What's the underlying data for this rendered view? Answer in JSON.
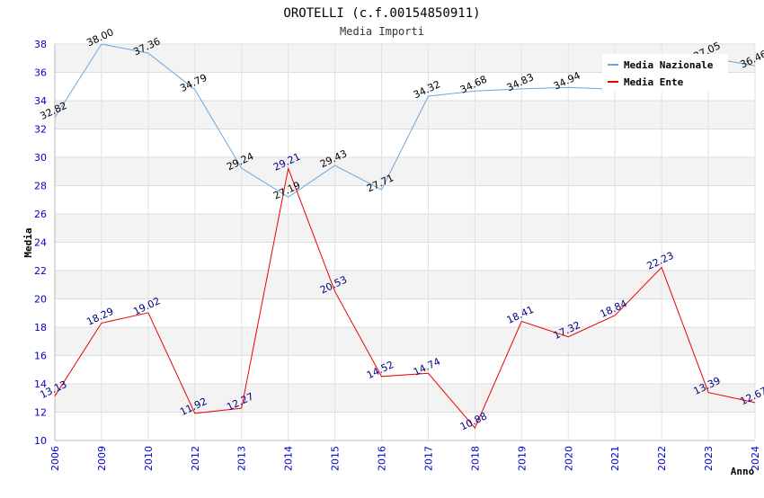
{
  "chart_data": {
    "type": "line",
    "title": "OROTELLI (c.f.00154850911)",
    "subtitle": "Media Importi",
    "xlabel": "Anno",
    "ylabel": "Media",
    "ylim": [
      10,
      38
    ],
    "yticks": [
      10,
      12,
      14,
      16,
      18,
      20,
      22,
      24,
      26,
      28,
      30,
      32,
      34,
      36,
      38
    ],
    "categories": [
      "2006",
      "2009",
      "2010",
      "2012",
      "2013",
      "2014",
      "2015",
      "2016",
      "2017",
      "2018",
      "2019",
      "2020",
      "2021",
      "2022",
      "2023",
      "2024"
    ],
    "legend_position": "top-right",
    "grid": true,
    "series": [
      {
        "name": "Media Nazionale",
        "color": "#6aa6e0",
        "values": [
          32.82,
          38.0,
          37.36,
          34.79,
          29.24,
          27.19,
          29.43,
          27.71,
          34.32,
          34.68,
          34.83,
          34.94,
          34.8,
          null,
          37.05,
          36.46
        ],
        "labels": [
          "32.82",
          "38.00",
          "37.36",
          "34.79",
          "29.24",
          "27.19",
          "29.43",
          "27.71",
          "34.32",
          "34.68",
          "34.83",
          "34.94",
          "",
          "",
          "37.05",
          "36.46"
        ]
      },
      {
        "name": "Media Ente",
        "color": "#ee0000",
        "values": [
          13.13,
          18.29,
          19.02,
          11.92,
          12.27,
          29.21,
          20.53,
          14.52,
          14.74,
          10.88,
          18.41,
          17.32,
          18.84,
          22.23,
          13.39,
          12.67
        ],
        "labels": [
          "13.13",
          "18.29",
          "19.02",
          "11.92",
          "12.27",
          "29.21",
          "20.53",
          "14.52",
          "14.74",
          "10.88",
          "18.41",
          "17.32",
          "18.84",
          "22.23",
          "13.39",
          "12.67"
        ]
      }
    ]
  }
}
